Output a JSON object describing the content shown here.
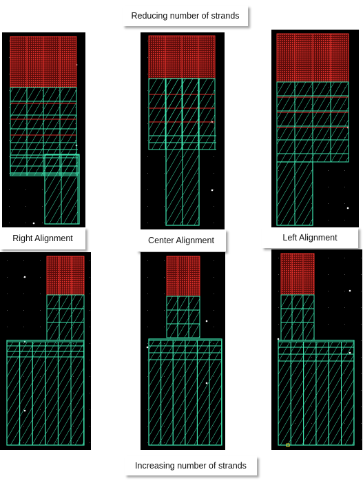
{
  "captions": {
    "top": "Reducing number of strands",
    "bottom": "Increasing number of strands"
  },
  "alignments": {
    "right": "Right Alignment",
    "center": "Center Alignment",
    "left": "Left Alignment"
  },
  "colors": {
    "background": "#000000",
    "metal_red": "#e0302a",
    "metal_green": "#3ee6b0",
    "grid_dot": "#ffffff"
  }
}
